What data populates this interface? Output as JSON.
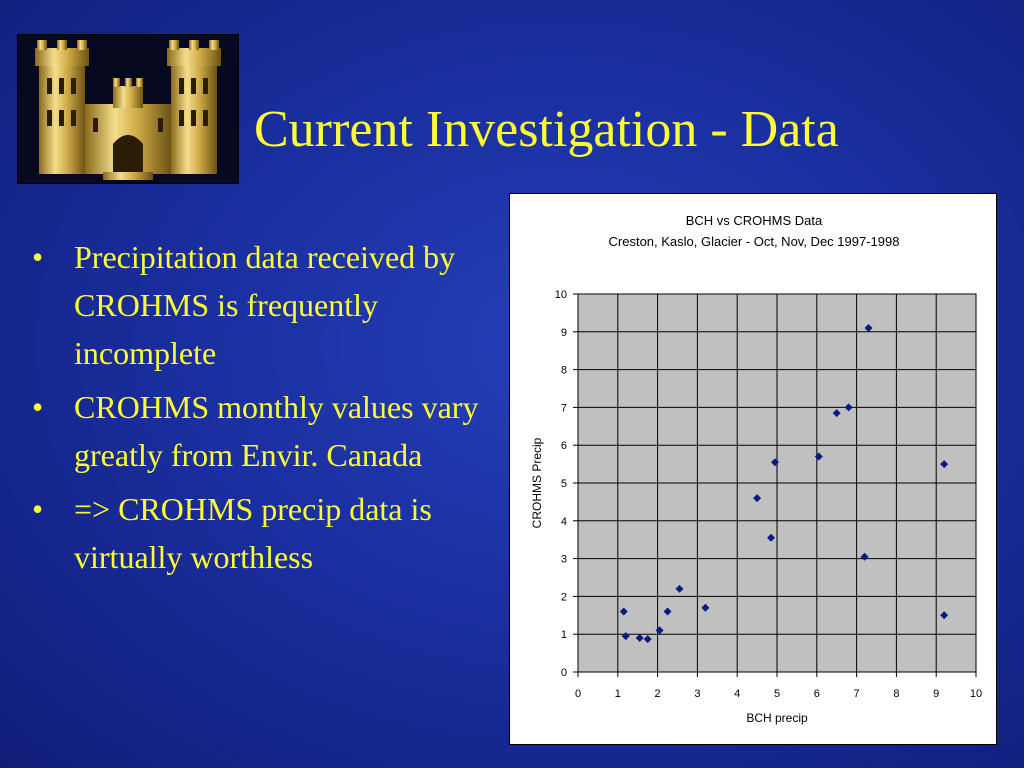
{
  "slide": {
    "title": "Current Investigation - Data",
    "bullets": [
      "Precipitation data received by CROHMS is frequently incomplete",
      "CROHMS monthly values vary greatly from Envir. Canada",
      "=> CROHMS precip data is virtually worthless"
    ],
    "logo_icon": "castle-icon",
    "colors": {
      "text": "#ffff33",
      "background": "#1a2fa0",
      "marker": "#0a1a80",
      "plot_area": "#c0c0c0"
    }
  },
  "chart_data": {
    "type": "scatter",
    "title": "BCH vs CROHMS Data",
    "subtitle": "Creston, Kaslo, Glacier - Oct, Nov, Dec 1997-1998",
    "xlabel": "BCH precip",
    "ylabel": "CROHMS Precip",
    "xlim": [
      0,
      10
    ],
    "ylim": [
      0,
      10
    ],
    "xticks": [
      "0",
      "1",
      "2",
      "3",
      "4",
      "5",
      "6",
      "7",
      "8",
      "9",
      "10"
    ],
    "yticks": [
      "0",
      "1",
      "2",
      "3",
      "4",
      "5",
      "6",
      "7",
      "8",
      "9",
      "10"
    ],
    "grid": true,
    "legend": "none",
    "points": [
      {
        "x": 1.15,
        "y": 1.6
      },
      {
        "x": 1.2,
        "y": 0.95
      },
      {
        "x": 1.55,
        "y": 0.9
      },
      {
        "x": 1.75,
        "y": 0.87
      },
      {
        "x": 2.05,
        "y": 1.1
      },
      {
        "x": 2.25,
        "y": 1.6
      },
      {
        "x": 2.55,
        "y": 2.2
      },
      {
        "x": 3.2,
        "y": 1.7
      },
      {
        "x": 4.5,
        "y": 4.6
      },
      {
        "x": 4.85,
        "y": 3.55
      },
      {
        "x": 4.95,
        "y": 5.55
      },
      {
        "x": 6.05,
        "y": 5.7
      },
      {
        "x": 6.5,
        "y": 6.85
      },
      {
        "x": 6.8,
        "y": 7.0
      },
      {
        "x": 7.2,
        "y": 3.05
      },
      {
        "x": 7.3,
        "y": 9.1
      },
      {
        "x": 9.2,
        "y": 5.5
      },
      {
        "x": 9.2,
        "y": 1.5
      }
    ]
  }
}
